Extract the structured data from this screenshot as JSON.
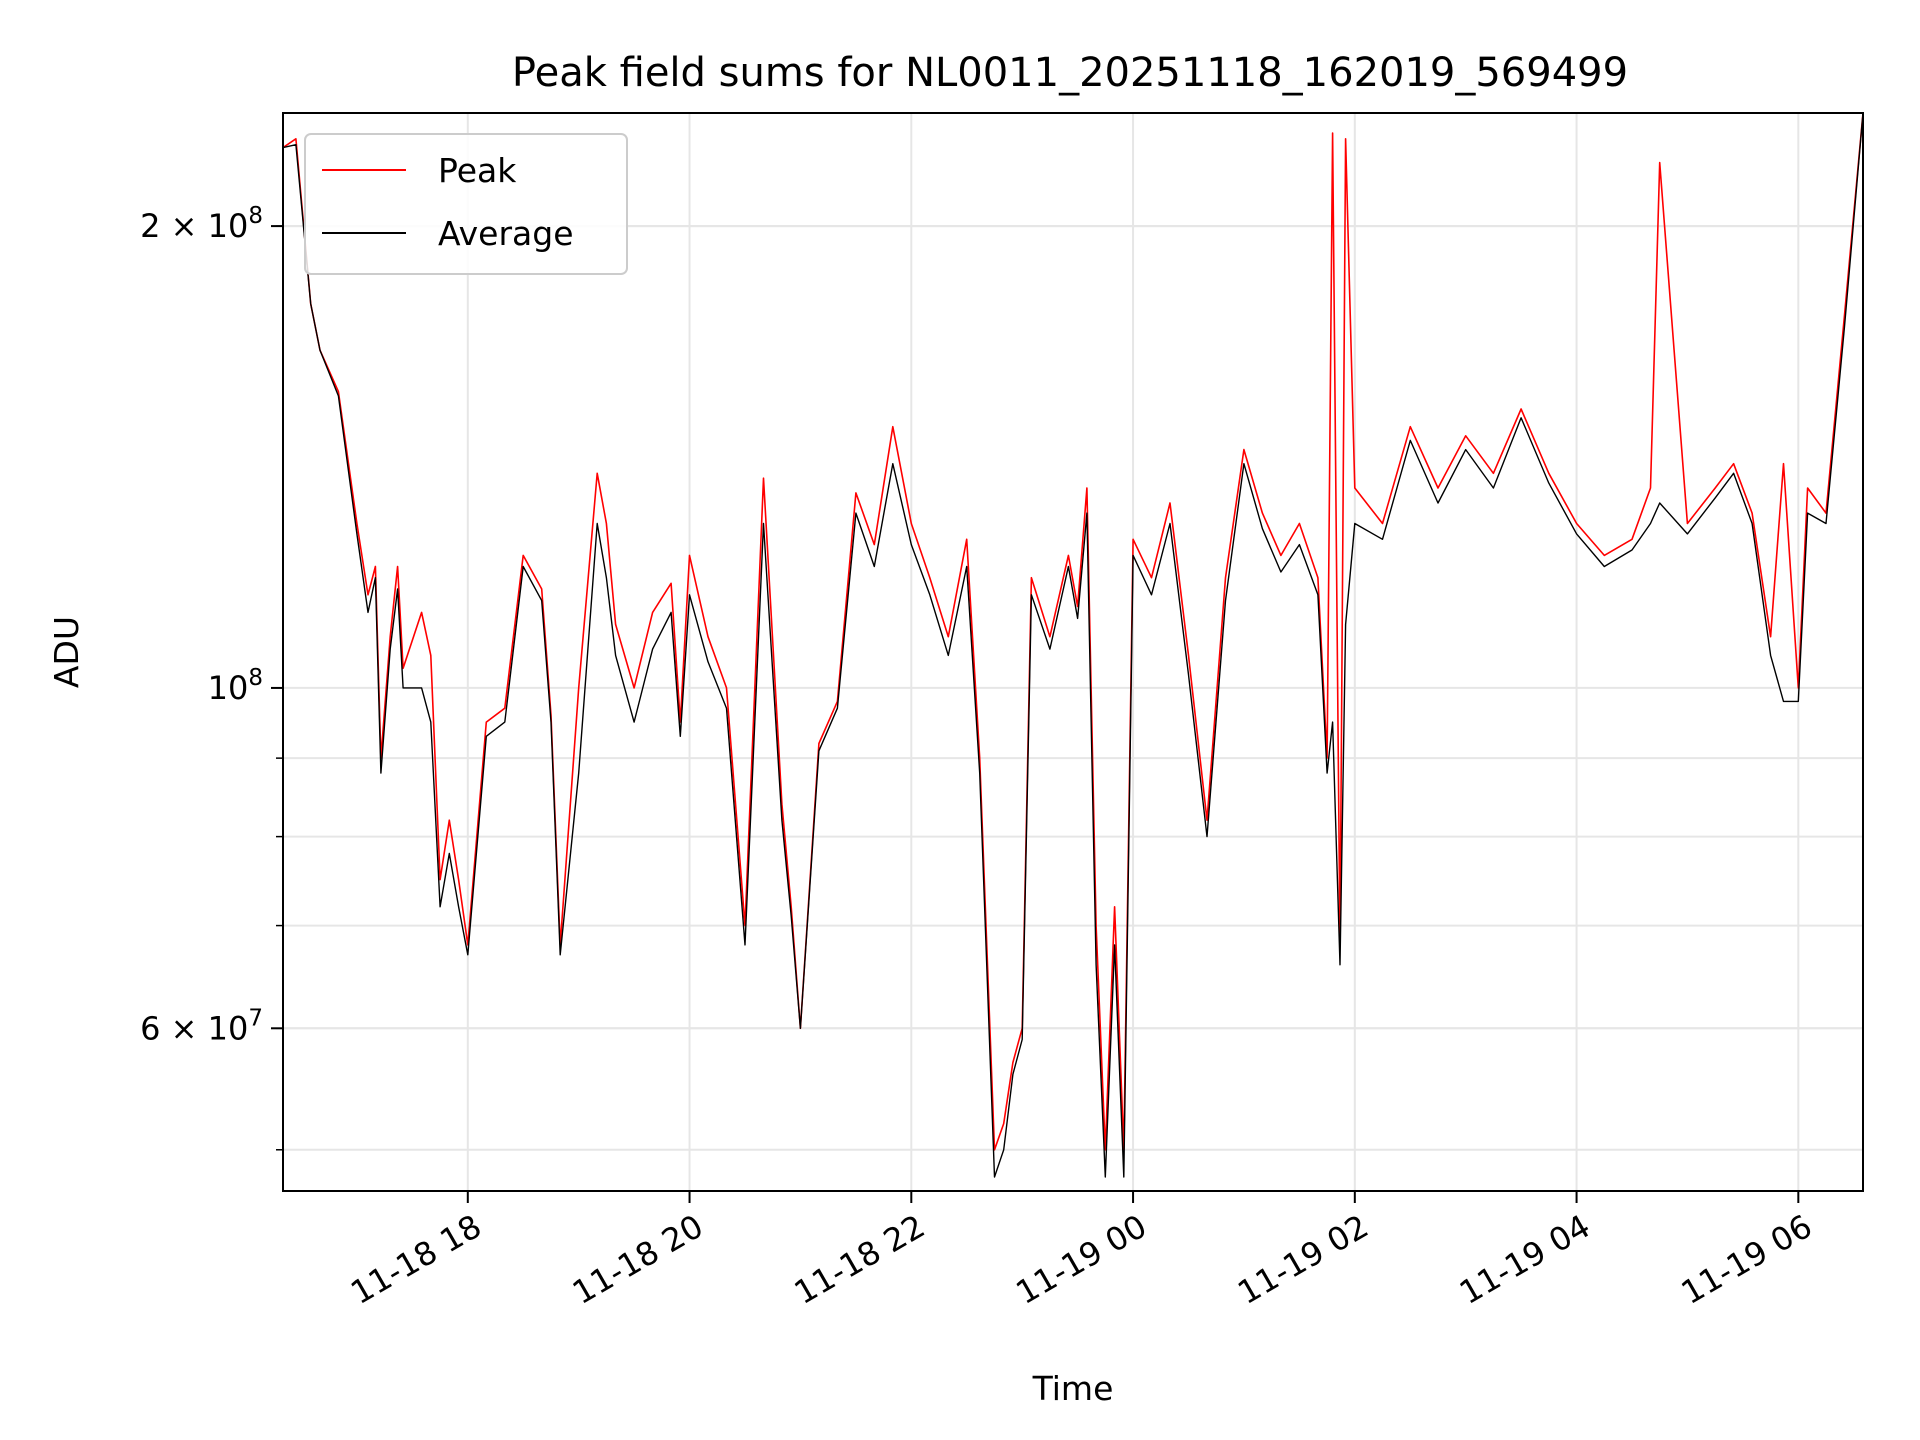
{
  "chart_data": {
    "type": "line",
    "title": "Peak field sums for NL0011_20251118_162019_569499",
    "xlabel": "Time",
    "ylabel": "ADU",
    "yscale": "log",
    "xlim": [
      "2025-11-18 16:20",
      "2025-11-19 06:35"
    ],
    "ylim": [
      47000000,
      237000000
    ],
    "grid": true,
    "legend_placement": "top-left",
    "x_ticks": [
      {
        "value": "2025-11-18 18:00",
        "label": "11-18 18"
      },
      {
        "value": "2025-11-18 20:00",
        "label": "11-18 20"
      },
      {
        "value": "2025-11-18 22:00",
        "label": "11-18 22"
      },
      {
        "value": "2025-11-19 00:00",
        "label": "11-19 00"
      },
      {
        "value": "2025-11-19 02:00",
        "label": "11-19 02"
      },
      {
        "value": "2025-11-19 04:00",
        "label": "11-19 04"
      },
      {
        "value": "2025-11-19 06:00",
        "label": "11-19 06"
      }
    ],
    "y_major_ticks": [
      {
        "value": 100000000,
        "base": "10",
        "exp": "8"
      },
      {
        "value": 200000000,
        "base": "2 × 10",
        "exp": "8"
      },
      {
        "value": 60000000,
        "base": "6 × 10",
        "exp": "7"
      }
    ],
    "y_minor_ticks": [
      50000000,
      60000000,
      70000000,
      80000000,
      90000000,
      200000000
    ],
    "series": [
      {
        "name": "Peak",
        "color": "#ff0000",
        "x": [
          "2025-11-18 16:20",
          "2025-11-18 16:27",
          "2025-11-18 16:35",
          "2025-11-18 16:40",
          "2025-11-18 16:50",
          "2025-11-18 17:00",
          "2025-11-18 17:06",
          "2025-11-18 17:10",
          "2025-11-18 17:13",
          "2025-11-18 17:18",
          "2025-11-18 17:22",
          "2025-11-18 17:25",
          "2025-11-18 17:35",
          "2025-11-18 17:40",
          "2025-11-18 17:45",
          "2025-11-18 17:50",
          "2025-11-18 17:55",
          "2025-11-18 18:00",
          "2025-11-18 18:10",
          "2025-11-18 18:20",
          "2025-11-18 18:30",
          "2025-11-18 18:40",
          "2025-11-18 18:45",
          "2025-11-18 18:50",
          "2025-11-18 19:00",
          "2025-11-18 19:10",
          "2025-11-18 19:15",
          "2025-11-18 19:20",
          "2025-11-18 19:30",
          "2025-11-18 19:40",
          "2025-11-18 19:50",
          "2025-11-18 19:55",
          "2025-11-18 20:00",
          "2025-11-18 20:10",
          "2025-11-18 20:20",
          "2025-11-18 20:30",
          "2025-11-18 20:40",
          "2025-11-18 20:50",
          "2025-11-18 20:55",
          "2025-11-18 21:00",
          "2025-11-18 21:10",
          "2025-11-18 21:20",
          "2025-11-18 21:30",
          "2025-11-18 21:40",
          "2025-11-18 21:50",
          "2025-11-18 22:00",
          "2025-11-18 22:10",
          "2025-11-18 22:20",
          "2025-11-18 22:30",
          "2025-11-18 22:37",
          "2025-11-18 22:45",
          "2025-11-18 22:50",
          "2025-11-18 22:55",
          "2025-11-18 23:00",
          "2025-11-18 23:05",
          "2025-11-18 23:15",
          "2025-11-18 23:25",
          "2025-11-18 23:30",
          "2025-11-18 23:35",
          "2025-11-18 23:40",
          "2025-11-18 23:45",
          "2025-11-18 23:50",
          "2025-11-18 23:55",
          "2025-11-19 00:00",
          "2025-11-19 00:10",
          "2025-11-19 00:20",
          "2025-11-19 00:30",
          "2025-11-19 00:40",
          "2025-11-19 00:50",
          "2025-11-19 01:00",
          "2025-11-19 01:10",
          "2025-11-19 01:20",
          "2025-11-19 01:30",
          "2025-11-19 01:40",
          "2025-11-19 01:45",
          "2025-11-19 01:48",
          "2025-11-19 01:52",
          "2025-11-19 01:55",
          "2025-11-19 02:00",
          "2025-11-19 02:15",
          "2025-11-19 02:30",
          "2025-11-19 02:45",
          "2025-11-19 03:00",
          "2025-11-19 03:15",
          "2025-11-19 03:30",
          "2025-11-19 03:45",
          "2025-11-19 04:00",
          "2025-11-19 04:15",
          "2025-11-19 04:30",
          "2025-11-19 04:40",
          "2025-11-19 04:45",
          "2025-11-19 05:00",
          "2025-11-19 05:15",
          "2025-11-19 05:25",
          "2025-11-19 05:35",
          "2025-11-19 05:45",
          "2025-11-19 05:52",
          "2025-11-19 06:00",
          "2025-11-19 06:05",
          "2025-11-19 06:15",
          "2025-11-19 06:25",
          "2025-11-19 06:35"
        ],
        "y": [
          225000000,
          228000000,
          178000000,
          166000000,
          156000000,
          128000000,
          115000000,
          120000000,
          90000000,
          108000000,
          120000000,
          103000000,
          112000000,
          105000000,
          75000000,
          82000000,
          75000000,
          68000000,
          95000000,
          97000000,
          122000000,
          116000000,
          96000000,
          68000000,
          100000000,
          138000000,
          128000000,
          110000000,
          100000000,
          112000000,
          117000000,
          95000000,
          122000000,
          108000000,
          100000000,
          70000000,
          137000000,
          84000000,
          72000000,
          60000000,
          92000000,
          98000000,
          134000000,
          124000000,
          148000000,
          128000000,
          118000000,
          108000000,
          125000000,
          90000000,
          50000000,
          52000000,
          57000000,
          60000000,
          118000000,
          108000000,
          122000000,
          113000000,
          135000000,
          70000000,
          50000000,
          72000000,
          50000000,
          125000000,
          118000000,
          132000000,
          105000000,
          82000000,
          118000000,
          143000000,
          130000000,
          122000000,
          128000000,
          118000000,
          90000000,
          230000000,
          68000000,
          228000000,
          135000000,
          128000000,
          148000000,
          135000000,
          146000000,
          138000000,
          152000000,
          138000000,
          128000000,
          122000000,
          125000000,
          135000000,
          220000000,
          128000000,
          135000000,
          140000000,
          130000000,
          108000000,
          140000000,
          100000000,
          135000000,
          130000000,
          175000000,
          237000000
        ]
      },
      {
        "name": "Average",
        "color": "#000000",
        "x": [
          "2025-11-18 16:20",
          "2025-11-18 16:27",
          "2025-11-18 16:35",
          "2025-11-18 16:40",
          "2025-11-18 16:50",
          "2025-11-18 17:00",
          "2025-11-18 17:06",
          "2025-11-18 17:10",
          "2025-11-18 17:13",
          "2025-11-18 17:18",
          "2025-11-18 17:22",
          "2025-11-18 17:25",
          "2025-11-18 17:35",
          "2025-11-18 17:40",
          "2025-11-18 17:45",
          "2025-11-18 17:50",
          "2025-11-18 17:55",
          "2025-11-18 18:00",
          "2025-11-18 18:10",
          "2025-11-18 18:20",
          "2025-11-18 18:30",
          "2025-11-18 18:40",
          "2025-11-18 18:45",
          "2025-11-18 18:50",
          "2025-11-18 19:00",
          "2025-11-18 19:10",
          "2025-11-18 19:15",
          "2025-11-18 19:20",
          "2025-11-18 19:30",
          "2025-11-18 19:40",
          "2025-11-18 19:50",
          "2025-11-18 19:55",
          "2025-11-18 20:00",
          "2025-11-18 20:10",
          "2025-11-18 20:20",
          "2025-11-18 20:30",
          "2025-11-18 20:40",
          "2025-11-18 20:50",
          "2025-11-18 20:55",
          "2025-11-18 21:00",
          "2025-11-18 21:10",
          "2025-11-18 21:20",
          "2025-11-18 21:30",
          "2025-11-18 21:40",
          "2025-11-18 21:50",
          "2025-11-18 22:00",
          "2025-11-18 22:10",
          "2025-11-18 22:20",
          "2025-11-18 22:30",
          "2025-11-18 22:37",
          "2025-11-18 22:45",
          "2025-11-18 22:50",
          "2025-11-18 22:55",
          "2025-11-18 23:00",
          "2025-11-18 23:05",
          "2025-11-18 23:15",
          "2025-11-18 23:25",
          "2025-11-18 23:30",
          "2025-11-18 23:35",
          "2025-11-18 23:40",
          "2025-11-18 23:45",
          "2025-11-18 23:50",
          "2025-11-18 23:55",
          "2025-11-19 00:00",
          "2025-11-19 00:10",
          "2025-11-19 00:20",
          "2025-11-19 00:30",
          "2025-11-19 00:40",
          "2025-11-19 00:50",
          "2025-11-19 01:00",
          "2025-11-19 01:10",
          "2025-11-19 01:20",
          "2025-11-19 01:30",
          "2025-11-19 01:40",
          "2025-11-19 01:45",
          "2025-11-19 01:48",
          "2025-11-19 01:52",
          "2025-11-19 01:55",
          "2025-11-19 02:00",
          "2025-11-19 02:15",
          "2025-11-19 02:30",
          "2025-11-19 02:45",
          "2025-11-19 03:00",
          "2025-11-19 03:15",
          "2025-11-19 03:30",
          "2025-11-19 03:45",
          "2025-11-19 04:00",
          "2025-11-19 04:15",
          "2025-11-19 04:30",
          "2025-11-19 04:40",
          "2025-11-19 04:45",
          "2025-11-19 05:00",
          "2025-11-19 05:15",
          "2025-11-19 05:25",
          "2025-11-19 05:35",
          "2025-11-19 05:45",
          "2025-11-19 05:52",
          "2025-11-19 06:00",
          "2025-11-19 06:05",
          "2025-11-19 06:15",
          "2025-11-19 06:25",
          "2025-11-19 06:35"
        ],
        "y": [
          225000000,
          226000000,
          178000000,
          166000000,
          155000000,
          126000000,
          112000000,
          118000000,
          88000000,
          106000000,
          116000000,
          100000000,
          100000000,
          95000000,
          72000000,
          78000000,
          72000000,
          67000000,
          93000000,
          95000000,
          120000000,
          114000000,
          95000000,
          67000000,
          88000000,
          128000000,
          118000000,
          105000000,
          95000000,
          106000000,
          112000000,
          93000000,
          115000000,
          104000000,
          97000000,
          68000000,
          128000000,
          82000000,
          71000000,
          60000000,
          91000000,
          97000000,
          130000000,
          120000000,
          140000000,
          124000000,
          115000000,
          105000000,
          120000000,
          88000000,
          48000000,
          50000000,
          56000000,
          59000000,
          115000000,
          106000000,
          120000000,
          111000000,
          130000000,
          66000000,
          48000000,
          68000000,
          48000000,
          122000000,
          115000000,
          128000000,
          102000000,
          80000000,
          114000000,
          140000000,
          127000000,
          119000000,
          124000000,
          115000000,
          88000000,
          95000000,
          66000000,
          110000000,
          128000000,
          125000000,
          145000000,
          132000000,
          143000000,
          135000000,
          150000000,
          136000000,
          126000000,
          120000000,
          123000000,
          128000000,
          132000000,
          126000000,
          133000000,
          138000000,
          128000000,
          105000000,
          98000000,
          98000000,
          130000000,
          128000000,
          172000000,
          237000000
        ]
      }
    ]
  }
}
